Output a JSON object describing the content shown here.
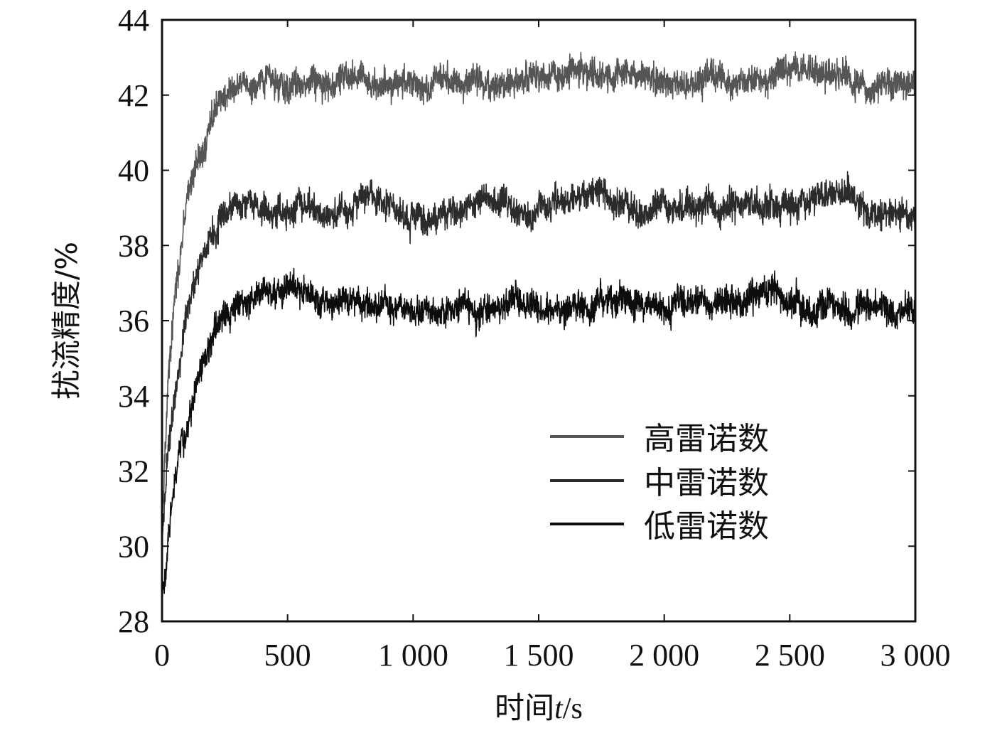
{
  "chart_data": {
    "type": "line",
    "title": "",
    "xlabel_prefix": "时间",
    "xlabel_var": "t",
    "xlabel_unit": "/s",
    "ylabel": "扰流精度/%",
    "xlim": [
      0,
      3000
    ],
    "ylim": [
      28,
      44
    ],
    "x_ticks": [
      0,
      500,
      1000,
      1500,
      2000,
      2500,
      3000
    ],
    "x_tick_labels": [
      "0",
      "500",
      "1 000",
      "1 500",
      "2 000",
      "2 500",
      "3 000"
    ],
    "y_ticks": [
      28,
      30,
      32,
      34,
      36,
      38,
      40,
      42,
      44
    ],
    "y_tick_labels": [
      "28",
      "30",
      "32",
      "34",
      "36",
      "38",
      "40",
      "42",
      "44"
    ],
    "grid": false,
    "legend_position": "lower-right",
    "series": [
      {
        "name": "高雷诺数",
        "color": "#555555",
        "x": [
          0,
          25,
          50,
          100,
          150,
          200,
          250,
          300,
          400,
          500,
          700,
          1000,
          1500,
          2000,
          2500,
          3000
        ],
        "y": [
          30.8,
          34.5,
          36.5,
          38.8,
          40.2,
          41.2,
          41.9,
          42.1,
          42.2,
          42.2,
          42.2,
          42.2,
          42.4,
          42.3,
          42.4,
          42.2
        ],
        "noise": 0.33
      },
      {
        "name": "中雷诺数",
        "color": "#2b2b2b",
        "x": [
          0,
          25,
          50,
          100,
          150,
          200,
          250,
          300,
          400,
          500,
          700,
          1000,
          1500,
          2000,
          2500,
          3000
        ],
        "y": [
          30.0,
          32.8,
          34.3,
          36.3,
          37.6,
          38.4,
          38.9,
          39.1,
          39.1,
          39.0,
          39.0,
          38.9,
          39.0,
          39.0,
          39.1,
          39.0
        ],
        "noise": 0.33
      },
      {
        "name": "低雷诺数",
        "color": "#0d0d0d",
        "x": [
          0,
          25,
          50,
          100,
          150,
          200,
          250,
          300,
          400,
          500,
          700,
          1000,
          1500,
          2000,
          2500,
          3000
        ],
        "y": [
          28.5,
          30.2,
          31.6,
          33.1,
          34.3,
          35.2,
          35.8,
          36.3,
          36.7,
          36.8,
          36.6,
          36.4,
          36.5,
          36.4,
          36.5,
          36.3
        ],
        "noise": 0.33
      }
    ]
  }
}
